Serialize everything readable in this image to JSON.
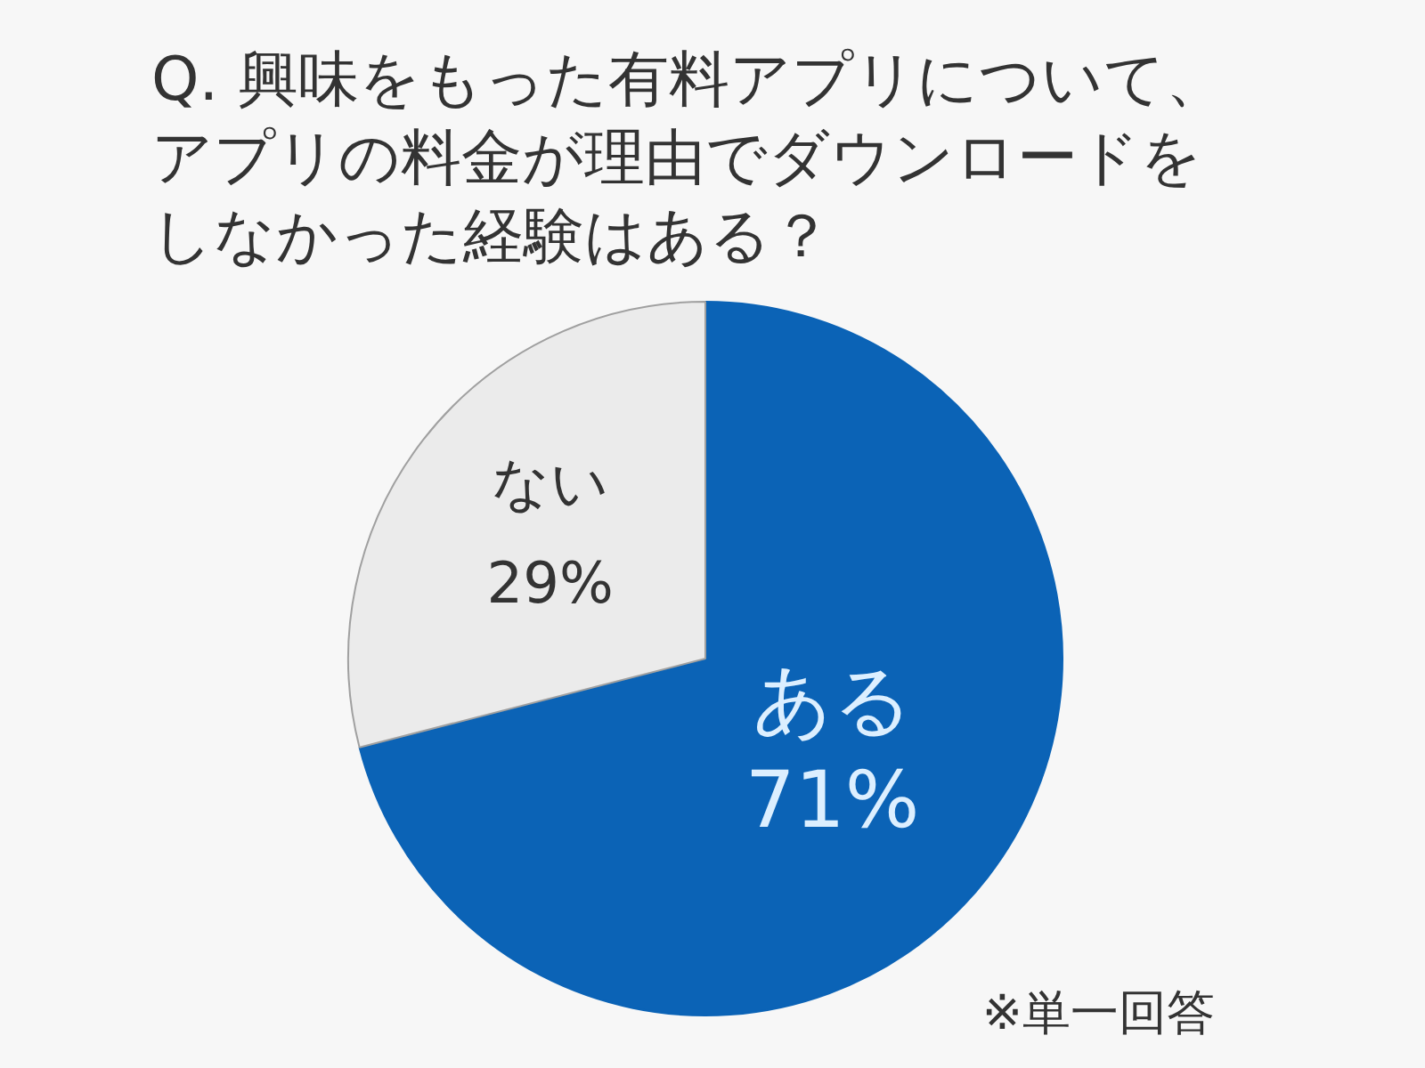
{
  "chart_data": {
    "type": "pie",
    "title": "Q. 興味をもった有料アプリについて、アプリの料金が理由でダウンロードをしなかった経験はある？",
    "categories": [
      "ある",
      "ない"
    ],
    "values": [
      71,
      29
    ],
    "value_labels": [
      "71%",
      "29%"
    ],
    "colors": [
      "#0b63b6",
      "#ebebeb"
    ],
    "annotations": [
      "※単一回答"
    ]
  }
}
